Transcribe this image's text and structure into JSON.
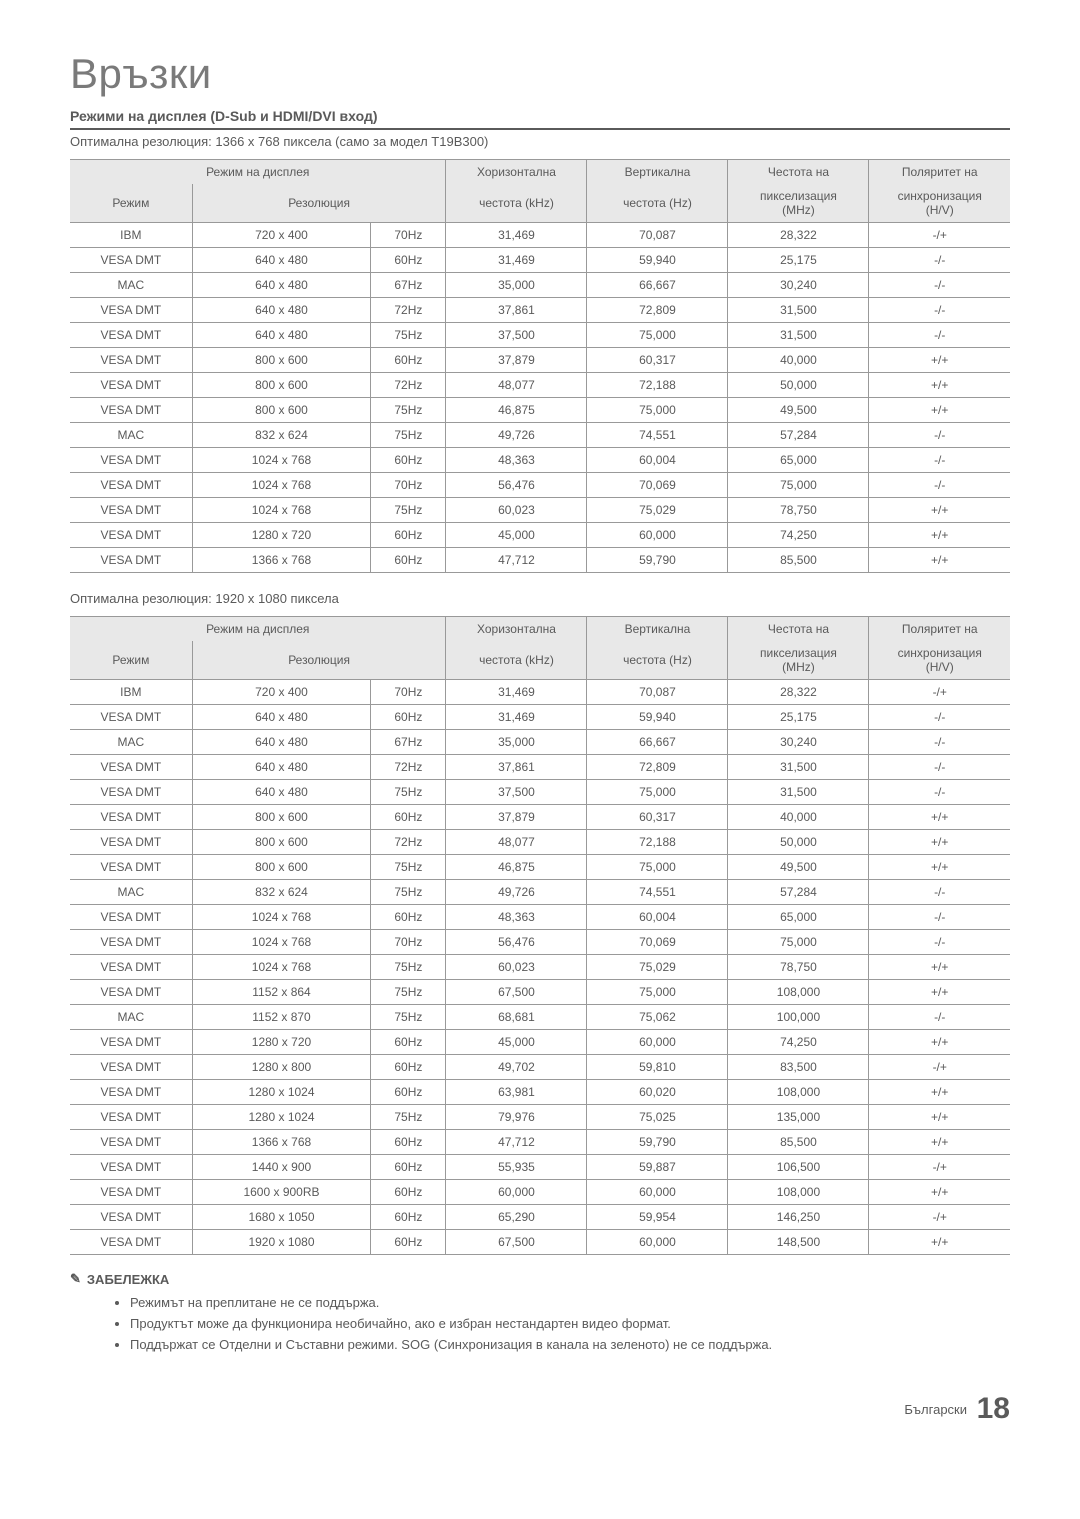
{
  "title": "Връзки",
  "section_heading": "Режими на дисплея (D-Sub и HDMI/DVI вход)",
  "optimal1": "Оптимална резолюция: 1366 x 768 пиксела (само за модел T19B300)",
  "optimal2": "Оптимална резолюция: 1920 x 1080 пиксела",
  "header": {
    "display_mode": "Режим на дисплея",
    "mode": "Режим",
    "resolution": "Резолюция",
    "hfreq_l1": "Хоризонтална",
    "hfreq_l2": "честота (kHz)",
    "vfreq_l1": "Вертикална",
    "vfreq_l2": "честота (Hz)",
    "pix_l1": "Честота на",
    "pix_l2": "пикселизация",
    "pix_l3": "(MHz)",
    "pol_l1": "Поляритет на",
    "pol_l2": "синхронизация",
    "pol_l3": "(H/V)"
  },
  "table1_rows": [
    [
      "IBM",
      "720 x 400",
      "70Hz",
      "31,469",
      "70,087",
      "28,322",
      "-/+"
    ],
    [
      "VESA DMT",
      "640 x 480",
      "60Hz",
      "31,469",
      "59,940",
      "25,175",
      "-/-"
    ],
    [
      "MAC",
      "640 x 480",
      "67Hz",
      "35,000",
      "66,667",
      "30,240",
      "-/-"
    ],
    [
      "VESA DMT",
      "640 x 480",
      "72Hz",
      "37,861",
      "72,809",
      "31,500",
      "-/-"
    ],
    [
      "VESA DMT",
      "640 x 480",
      "75Hz",
      "37,500",
      "75,000",
      "31,500",
      "-/-"
    ],
    [
      "VESA DMT",
      "800 x 600",
      "60Hz",
      "37,879",
      "60,317",
      "40,000",
      "+/+"
    ],
    [
      "VESA DMT",
      "800 x 600",
      "72Hz",
      "48,077",
      "72,188",
      "50,000",
      "+/+"
    ],
    [
      "VESA DMT",
      "800 x 600",
      "75Hz",
      "46,875",
      "75,000",
      "49,500",
      "+/+"
    ],
    [
      "MAC",
      "832 x 624",
      "75Hz",
      "49,726",
      "74,551",
      "57,284",
      "-/-"
    ],
    [
      "VESA DMT",
      "1024 x 768",
      "60Hz",
      "48,363",
      "60,004",
      "65,000",
      "-/-"
    ],
    [
      "VESA DMT",
      "1024 x 768",
      "70Hz",
      "56,476",
      "70,069",
      "75,000",
      "-/-"
    ],
    [
      "VESA DMT",
      "1024 x 768",
      "75Hz",
      "60,023",
      "75,029",
      "78,750",
      "+/+"
    ],
    [
      "VESA DMT",
      "1280 x 720",
      "60Hz",
      "45,000",
      "60,000",
      "74,250",
      "+/+"
    ],
    [
      "VESA DMT",
      "1366 x 768",
      "60Hz",
      "47,712",
      "59,790",
      "85,500",
      "+/+"
    ]
  ],
  "table2_rows": [
    [
      "IBM",
      "720 x 400",
      "70Hz",
      "31,469",
      "70,087",
      "28,322",
      "-/+"
    ],
    [
      "VESA DMT",
      "640 x 480",
      "60Hz",
      "31,469",
      "59,940",
      "25,175",
      "-/-"
    ],
    [
      "MAC",
      "640 x 480",
      "67Hz",
      "35,000",
      "66,667",
      "30,240",
      "-/-"
    ],
    [
      "VESA DMT",
      "640 x 480",
      "72Hz",
      "37,861",
      "72,809",
      "31,500",
      "-/-"
    ],
    [
      "VESA DMT",
      "640 x 480",
      "75Hz",
      "37,500",
      "75,000",
      "31,500",
      "-/-"
    ],
    [
      "VESA DMT",
      "800 x 600",
      "60Hz",
      "37,879",
      "60,317",
      "40,000",
      "+/+"
    ],
    [
      "VESA DMT",
      "800 x 600",
      "72Hz",
      "48,077",
      "72,188",
      "50,000",
      "+/+"
    ],
    [
      "VESA DMT",
      "800 x 600",
      "75Hz",
      "46,875",
      "75,000",
      "49,500",
      "+/+"
    ],
    [
      "MAC",
      "832 x 624",
      "75Hz",
      "49,726",
      "74,551",
      "57,284",
      "-/-"
    ],
    [
      "VESA DMT",
      "1024 x 768",
      "60Hz",
      "48,363",
      "60,004",
      "65,000",
      "-/-"
    ],
    [
      "VESA DMT",
      "1024 x 768",
      "70Hz",
      "56,476",
      "70,069",
      "75,000",
      "-/-"
    ],
    [
      "VESA DMT",
      "1024 x 768",
      "75Hz",
      "60,023",
      "75,029",
      "78,750",
      "+/+"
    ],
    [
      "VESA DMT",
      "1152 x 864",
      "75Hz",
      "67,500",
      "75,000",
      "108,000",
      "+/+"
    ],
    [
      "MAC",
      "1152 x 870",
      "75Hz",
      "68,681",
      "75,062",
      "100,000",
      "-/-"
    ],
    [
      "VESA DMT",
      "1280 x 720",
      "60Hz",
      "45,000",
      "60,000",
      "74,250",
      "+/+"
    ],
    [
      "VESA DMT",
      "1280 x 800",
      "60Hz",
      "49,702",
      "59,810",
      "83,500",
      "-/+"
    ],
    [
      "VESA DMT",
      "1280 x 1024",
      "60Hz",
      "63,981",
      "60,020",
      "108,000",
      "+/+"
    ],
    [
      "VESA DMT",
      "1280 x 1024",
      "75Hz",
      "79,976",
      "75,025",
      "135,000",
      "+/+"
    ],
    [
      "VESA DMT",
      "1366 x 768",
      "60Hz",
      "47,712",
      "59,790",
      "85,500",
      "+/+"
    ],
    [
      "VESA DMT",
      "1440 x 900",
      "60Hz",
      "55,935",
      "59,887",
      "106,500",
      "-/+"
    ],
    [
      "VESA DMT",
      "1600 x 900RB",
      "60Hz",
      "60,000",
      "60,000",
      "108,000",
      "+/+"
    ],
    [
      "VESA DMT",
      "1680 x 1050",
      "60Hz",
      "65,290",
      "59,954",
      "146,250",
      "-/+"
    ],
    [
      "VESA DMT",
      "1920 x 1080",
      "60Hz",
      "67,500",
      "60,000",
      "148,500",
      "+/+"
    ]
  ],
  "note_label": "ЗАБЕЛЕЖКА",
  "notes": [
    "Режимът на преплитане не се поддържа.",
    "Продуктът може да функционира необичайно, ако е избран нестандартен видео формат.",
    "Поддържат се Отделни и Съставни режими. SOG (Синхронизация в канала на зеленото) не се поддържа."
  ],
  "footer_lang": "Български",
  "footer_page": "18",
  "colors": {
    "text": "#595959",
    "header_bg": "#e8e8e8",
    "border": "#999999",
    "bg": "#ffffff"
  },
  "col_widths": [
    "13%",
    "19%",
    "8%",
    "15%",
    "15%",
    "15%",
    "15%"
  ]
}
